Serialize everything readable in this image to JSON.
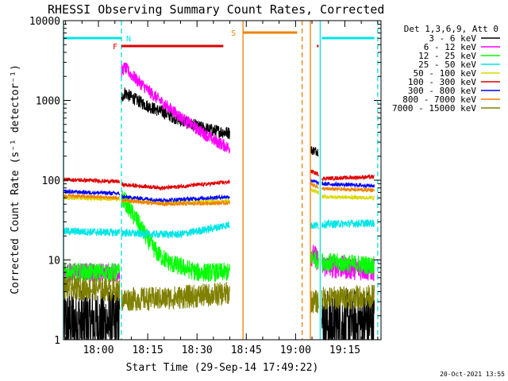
{
  "chart_data": {
    "type": "line",
    "title": "RHESSI Observing Summary Count Rates, Corrected",
    "xlabel": "Start Time (29-Sep-14 17:49:22)",
    "ylabel": "Corrected Count Rate (s⁻¹ detector⁻¹)",
    "yscale": "log",
    "ylim": [
      1,
      10000
    ],
    "xlim": [
      "17:49:22",
      "19:26:00"
    ],
    "xticks": [
      "18:00",
      "18:15",
      "18:30",
      "18:45",
      "19:00",
      "19:15"
    ],
    "yticks": [
      "1",
      "10",
      "100",
      "1000",
      "10000"
    ],
    "legend_title": "Det 1,3,6,9, Att 0",
    "legend_position": "top-right-outside",
    "timestamp": "20-Oct-2021 13:55",
    "grid": false,
    "flags": [
      {
        "label": "N",
        "color": "#00e5e5",
        "segments": [
          [
            "17:49:22",
            "18:07:00"
          ],
          [
            "19:08:00",
            "19:24:00"
          ]
        ]
      },
      {
        "label": "F",
        "color": "#e00000",
        "segments": [
          [
            "18:07:00",
            "18:38:00"
          ],
          [
            "19:06:30",
            "19:07:00"
          ]
        ]
      },
      {
        "label": "S",
        "color": "#f08000",
        "segments": [
          [
            "18:44:00",
            "19:00:30"
          ]
        ]
      }
    ],
    "vertical_lines": [
      {
        "time": "17:49:22",
        "color": "#00e5e5",
        "style": "solid"
      },
      {
        "time": "18:07:00",
        "color": "#00e5e5",
        "style": "dashed"
      },
      {
        "time": "18:44:00",
        "color": "#f08000",
        "style": "solid"
      },
      {
        "time": "19:02:00",
        "color": "#f08000",
        "style": "dashed"
      },
      {
        "time": "19:04:30",
        "color": "#f08000",
        "style": "solid"
      },
      {
        "time": "19:07:30",
        "color": "#00e5e5",
        "style": "solid"
      },
      {
        "time": "19:25:00",
        "color": "#00e5e5",
        "style": "dashed"
      }
    ],
    "series": [
      {
        "name": "3 - 6 keV",
        "color": "#000000",
        "segments": [
          {
            "x": [
              "17:49:22",
              "18:06:30"
            ],
            "y": [
              1.6,
              1.6
            ],
            "noise": 0.45
          },
          {
            "x": [
              "18:07:00",
              "18:08:00",
              "18:10:00",
              "18:15:00",
              "18:20:00",
              "18:25:00",
              "18:30:00",
              "18:35:00",
              "18:40:00"
            ],
            "y": [
              1050,
              1250,
              1100,
              850,
              700,
              560,
              470,
              420,
              390
            ],
            "noise": 0.08
          },
          {
            "x": [
              "19:04:30",
              "19:07:00"
            ],
            "y": [
              240,
              230
            ],
            "noise": 0.06
          },
          {
            "x": [
              "19:08:00",
              "19:24:00"
            ],
            "y": [
              1.6,
              1.6
            ],
            "noise": 0.45
          }
        ]
      },
      {
        "name": "6 - 12 keV",
        "color": "#ff00ff",
        "segments": [
          {
            "x": [
              "17:49:22",
              "18:06:30"
            ],
            "y": [
              7.0,
              7.0
            ],
            "noise": 0.12
          },
          {
            "x": [
              "18:07:00",
              "18:08:00",
              "18:10:00",
              "18:15:00",
              "18:20:00",
              "18:25:00",
              "18:30:00",
              "18:35:00",
              "18:40:00"
            ],
            "y": [
              2300,
              2600,
              2100,
              1350,
              900,
              620,
              440,
              320,
              250
            ],
            "noise": 0.08
          },
          {
            "x": [
              "19:04:30",
              "19:07:00"
            ],
            "y": [
              12,
              10
            ],
            "noise": 0.15
          },
          {
            "x": [
              "19:08:00",
              "19:24:00"
            ],
            "y": [
              8.5,
              7.5
            ],
            "noise": 0.15
          }
        ]
      },
      {
        "name": "12 - 25 keV",
        "color": "#00ff00",
        "segments": [
          {
            "x": [
              "17:49:22",
              "18:06:30"
            ],
            "y": [
              7.0,
              7.0
            ],
            "noise": 0.12
          },
          {
            "x": [
              "18:07:00",
              "18:08:00",
              "18:10:00",
              "18:12:00",
              "18:15:00",
              "18:18:00",
              "18:22:00",
              "18:26:00",
              "18:30:00",
              "18:35:00",
              "18:40:00"
            ],
            "y": [
              60,
              55,
              40,
              30,
              18,
              12,
              9,
              8,
              7,
              7,
              7
            ],
            "noise": 0.12
          },
          {
            "x": [
              "19:04:30",
              "19:07:00"
            ],
            "y": [
              11,
              10
            ],
            "noise": 0.12
          },
          {
            "x": [
              "19:08:00",
              "19:24:00"
            ],
            "y": [
              9.5,
              8.5
            ],
            "noise": 0.12
          }
        ]
      },
      {
        "name": "25 - 50 keV",
        "color": "#00e5e5",
        "segments": [
          {
            "x": [
              "17:49:22",
              "18:06:30"
            ],
            "y": [
              23,
              22
            ],
            "noise": 0.05
          },
          {
            "x": [
              "18:07:00",
              "18:15:00",
              "18:25:00",
              "18:35:00",
              "18:40:00"
            ],
            "y": [
              22,
              21,
              21,
              25,
              28
            ],
            "noise": 0.05
          },
          {
            "x": [
              "19:04:30",
              "19:07:00"
            ],
            "y": [
              27,
              27
            ],
            "noise": 0.05
          },
          {
            "x": [
              "19:08:00",
              "19:24:00"
            ],
            "y": [
              28,
              29
            ],
            "noise": 0.05
          }
        ]
      },
      {
        "name": "50 - 100 keV",
        "color": "#d8d800",
        "segments": [
          {
            "x": [
              "17:49:22",
              "18:06:30"
            ],
            "y": [
              60,
              58
            ],
            "noise": 0.025
          },
          {
            "x": [
              "18:07:00",
              "18:20:00",
              "18:40:00"
            ],
            "y": [
              56,
              52,
              55
            ],
            "noise": 0.025
          },
          {
            "x": [
              "19:04:30",
              "19:07:00"
            ],
            "y": [
              75,
              70
            ],
            "noise": 0.025
          },
          {
            "x": [
              "19:08:00",
              "19:24:00"
            ],
            "y": [
              62,
              60
            ],
            "noise": 0.025
          }
        ]
      },
      {
        "name": "100 - 300 keV",
        "color": "#e00000",
        "segments": [
          {
            "x": [
              "17:49:22",
              "18:06:30"
            ],
            "y": [
              102,
              96
            ],
            "noise": 0.025
          },
          {
            "x": [
              "18:07:00",
              "18:20:00",
              "18:40:00"
            ],
            "y": [
              88,
              80,
              95
            ],
            "noise": 0.025
          },
          {
            "x": [
              "19:04:30",
              "19:07:00"
            ],
            "y": [
              130,
              118
            ],
            "noise": 0.025
          },
          {
            "x": [
              "19:08:00",
              "19:24:00"
            ],
            "y": [
              105,
              110
            ],
            "noise": 0.025
          }
        ]
      },
      {
        "name": "300 - 800 keV",
        "color": "#0000ff",
        "segments": [
          {
            "x": [
              "17:49:22",
              "18:06:30"
            ],
            "y": [
              72,
              68
            ],
            "noise": 0.025
          },
          {
            "x": [
              "18:07:00",
              "18:20:00",
              "18:40:00"
            ],
            "y": [
              62,
              56,
              62
            ],
            "noise": 0.025
          },
          {
            "x": [
              "19:04:30",
              "19:07:00"
            ],
            "y": [
              100,
              92
            ],
            "noise": 0.025
          },
          {
            "x": [
              "19:08:00",
              "19:24:00"
            ],
            "y": [
              90,
              85
            ],
            "noise": 0.025
          }
        ]
      },
      {
        "name": "800 - 7000 keV",
        "color": "#f08000",
        "segments": [
          {
            "x": [
              "17:49:22",
              "18:06:30"
            ],
            "y": [
              64,
              60
            ],
            "noise": 0.025
          },
          {
            "x": [
              "18:07:00",
              "18:20:00",
              "18:40:00"
            ],
            "y": [
              56,
              50,
              52
            ],
            "noise": 0.025
          },
          {
            "x": [
              "19:04:30",
              "19:07:00"
            ],
            "y": [
              90,
              82
            ],
            "noise": 0.025
          },
          {
            "x": [
              "19:08:00",
              "19:24:00"
            ],
            "y": [
              78,
              75
            ],
            "noise": 0.025
          }
        ]
      },
      {
        "name": "7000 - 15000 keV",
        "color": "#808000",
        "segments": [
          {
            "x": [
              "17:49:22",
              "18:06:30"
            ],
            "y": [
              4.5,
              4.2
            ],
            "noise": 0.15
          },
          {
            "x": [
              "18:07:00",
              "18:20:00",
              "18:40:00"
            ],
            "y": [
              3.2,
              3.3,
              3.8
            ],
            "noise": 0.15
          },
          {
            "x": [
              "19:04:30",
              "19:07:00"
            ],
            "y": [
              3.0,
              3.0
            ],
            "noise": 0.15
          },
          {
            "x": [
              "19:08:00",
              "19:24:00"
            ],
            "y": [
              3.3,
              3.5
            ],
            "noise": 0.15
          }
        ]
      }
    ]
  }
}
